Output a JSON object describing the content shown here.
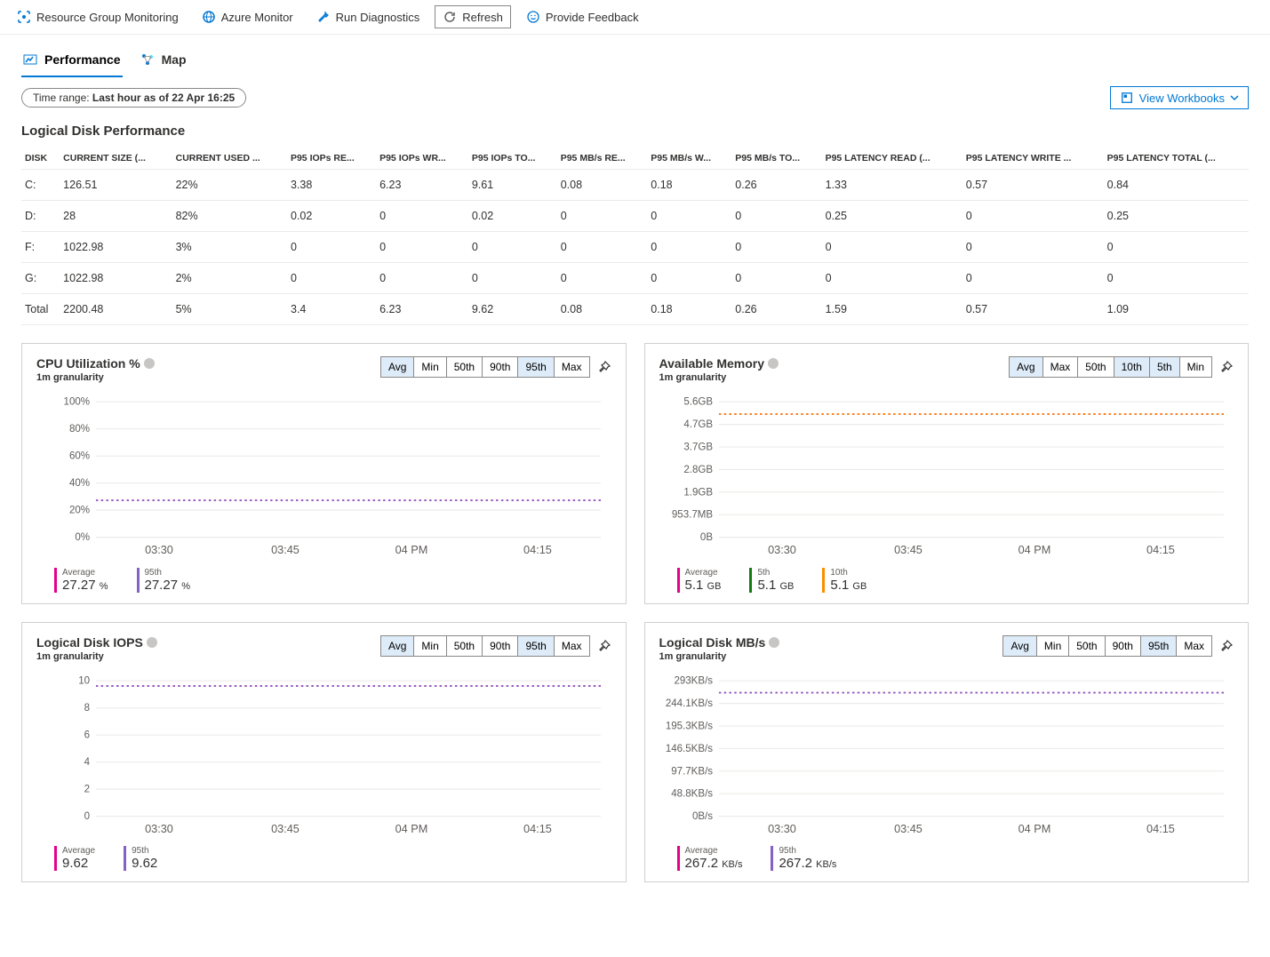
{
  "toolbar": {
    "items": [
      {
        "label": "Resource Group Monitoring",
        "icon": "scope"
      },
      {
        "label": "Azure Monitor",
        "icon": "globe"
      },
      {
        "label": "Run Diagnostics",
        "icon": "wrench"
      },
      {
        "label": "Refresh",
        "icon": "refresh",
        "active": true
      },
      {
        "label": "Provide Feedback",
        "icon": "smile"
      }
    ]
  },
  "tabs": {
    "items": [
      {
        "label": "Performance",
        "icon": "perf",
        "active": true
      },
      {
        "label": "Map",
        "icon": "map"
      }
    ]
  },
  "timerange": {
    "prefix": "Time range: ",
    "value": "Last hour as of 22 Apr 16:25"
  },
  "workbooks_label": "View Workbooks",
  "disk": {
    "title": "Logical Disk Performance",
    "columns": [
      "DISK",
      "CURRENT SIZE (...",
      "CURRENT USED ...",
      "P95 IOPs RE...",
      "P95 IOPs WR...",
      "P95 IOPs TO...",
      "P95 MB/s RE...",
      "P95 MB/s W...",
      "P95 MB/s TO...",
      "P95 LATENCY READ (...",
      "P95 LATENCY WRITE ...",
      "P95 LATENCY TOTAL (..."
    ],
    "rows": [
      [
        "C:",
        "126.51",
        "22%",
        "3.38",
        "6.23",
        "9.61",
        "0.08",
        "0.18",
        "0.26",
        "1.33",
        "0.57",
        "0.84"
      ],
      [
        "D:",
        "28",
        "82%",
        "0.02",
        "0",
        "0.02",
        "0",
        "0",
        "0",
        "0.25",
        "0",
        "0.25"
      ],
      [
        "F:",
        "1022.98",
        "3%",
        "0",
        "0",
        "0",
        "0",
        "0",
        "0",
        "0",
        "0",
        "0"
      ],
      [
        "G:",
        "1022.98",
        "2%",
        "0",
        "0",
        "0",
        "0",
        "0",
        "0",
        "0",
        "0",
        "0"
      ],
      [
        "Total",
        "2200.48",
        "5%",
        "3.4",
        "6.23",
        "9.62",
        "0.08",
        "0.18",
        "0.26",
        "1.59",
        "0.57",
        "1.09"
      ]
    ]
  },
  "charts": {
    "xticks": [
      "03:30",
      "03:45",
      "04 PM",
      "04:15"
    ],
    "cpu": {
      "title": "CPU Utilization %",
      "granularity": "1m granularity",
      "segs": [
        "Avg",
        "Min",
        "50th",
        "90th",
        "95th",
        "Max"
      ],
      "segs_on": [
        0,
        4
      ],
      "yticks": [
        "100%",
        "80%",
        "60%",
        "40%",
        "20%",
        "0%"
      ],
      "series": [
        {
          "color": "#e3008c",
          "value_frac": 0.2727,
          "style": "dot"
        },
        {
          "color": "#8661c5",
          "value_frac": 0.2727,
          "style": "dot"
        }
      ],
      "legend": [
        {
          "label": "Average",
          "value": "27.27",
          "unit": "%",
          "color": "#e3008c"
        },
        {
          "label": "95th",
          "value": "27.27",
          "unit": "%",
          "color": "#8661c5"
        }
      ]
    },
    "mem": {
      "title": "Available Memory",
      "granularity": "1m granularity",
      "segs": [
        "Avg",
        "Max",
        "50th",
        "10th",
        "5th",
        "Min"
      ],
      "segs_on": [
        0,
        3,
        4
      ],
      "yticks": [
        "5.6GB",
        "4.7GB",
        "3.7GB",
        "2.8GB",
        "1.9GB",
        "953.7MB",
        "0B"
      ],
      "series": [
        {
          "color": "#e3008c",
          "value_frac": 0.91,
          "style": "dot"
        },
        {
          "color": "#ff8c00",
          "value_frac": 0.91,
          "style": "dot"
        }
      ],
      "legend": [
        {
          "label": "Average",
          "value": "5.1",
          "unit": "GB",
          "color": "#e3008c"
        },
        {
          "label": "5th",
          "value": "5.1",
          "unit": "GB",
          "color": "#107c10"
        },
        {
          "label": "10th",
          "value": "5.1",
          "unit": "GB",
          "color": "#ff8c00"
        }
      ]
    },
    "iops": {
      "title": "Logical Disk IOPS",
      "granularity": "1m granularity",
      "segs": [
        "Avg",
        "Min",
        "50th",
        "90th",
        "95th",
        "Max"
      ],
      "segs_on": [
        0,
        4
      ],
      "yticks": [
        "10",
        "8",
        "6",
        "4",
        "2",
        "0"
      ],
      "series": [
        {
          "color": "#e3008c",
          "value_frac": 0.962,
          "style": "dot"
        },
        {
          "color": "#8661c5",
          "value_frac": 0.962,
          "style": "dot"
        }
      ],
      "legend": [
        {
          "label": "Average",
          "value": "9.62",
          "unit": "",
          "color": "#e3008c"
        },
        {
          "label": "95th",
          "value": "9.62",
          "unit": "",
          "color": "#8661c5"
        }
      ]
    },
    "mbs": {
      "title": "Logical Disk MB/s",
      "granularity": "1m granularity",
      "segs": [
        "Avg",
        "Min",
        "50th",
        "90th",
        "95th",
        "Max"
      ],
      "segs_on": [
        0,
        4
      ],
      "yticks": [
        "293KB/s",
        "244.1KB/s",
        "195.3KB/s",
        "146.5KB/s",
        "97.7KB/s",
        "48.8KB/s",
        "0B/s"
      ],
      "series": [
        {
          "color": "#e3008c",
          "value_frac": 0.912,
          "style": "dot"
        },
        {
          "color": "#8661c5",
          "value_frac": 0.912,
          "style": "dot"
        }
      ],
      "legend": [
        {
          "label": "Average",
          "value": "267.2",
          "unit": "KB/s",
          "color": "#e3008c"
        },
        {
          "label": "95th",
          "value": "267.2",
          "unit": "KB/s",
          "color": "#8661c5"
        }
      ]
    }
  },
  "colors": {
    "accent": "#0078d4",
    "grid": "#edebe9"
  }
}
